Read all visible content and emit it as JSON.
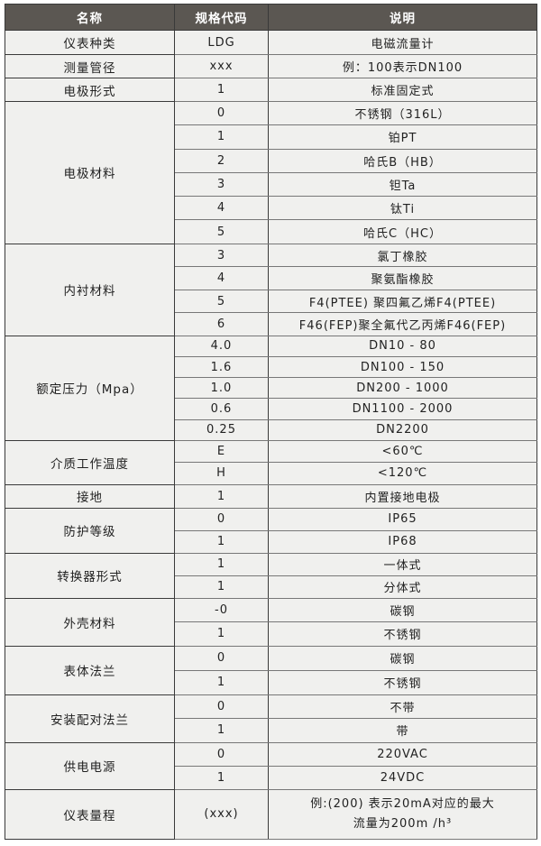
{
  "header": {
    "name": "名称",
    "code": "规格代码",
    "desc": "说明"
  },
  "groups": [
    {
      "name": "仪表种类",
      "rows": [
        {
          "code": "LDG",
          "desc": "电磁流量计"
        }
      ]
    },
    {
      "name": "测量管径",
      "rows": [
        {
          "code": "xxx",
          "desc": "例：100表示DN100"
        }
      ]
    },
    {
      "name": "电极形式",
      "rows": [
        {
          "code": "1",
          "desc": "标准固定式"
        }
      ]
    },
    {
      "name": "电极材料",
      "rows": [
        {
          "code": "0",
          "desc": "不锈钢（316L）"
        },
        {
          "code": "1",
          "desc": "铂PT"
        },
        {
          "code": "2",
          "desc": "哈氏B（HB）"
        },
        {
          "code": "3",
          "desc": "钽Ta"
        },
        {
          "code": "4",
          "desc": "钛Ti"
        },
        {
          "code": "5",
          "desc": "哈氏C（HC）"
        }
      ]
    },
    {
      "name": "内衬材料",
      "rows": [
        {
          "code": "3",
          "desc": "氯丁橡胶"
        },
        {
          "code": "4",
          "desc": "聚氨酯橡胶"
        },
        {
          "code": "5",
          "desc": "F4(PTEE) 聚四氟乙烯F4(PTEE)"
        },
        {
          "code": "6",
          "desc": "F46(FEP)聚全氟代乙丙烯F46(FEP)"
        }
      ]
    },
    {
      "name": "额定压力（Mpa）",
      "rows": [
        {
          "code": "4.0",
          "desc": "DN10 - 80"
        },
        {
          "code": "1.6",
          "desc": "DN100 - 150"
        },
        {
          "code": "1.0",
          "desc": "DN200 - 1000"
        },
        {
          "code": "0.6",
          "desc": "DN1100 - 2000"
        },
        {
          "code": "0.25",
          "desc": "DN2200"
        }
      ]
    },
    {
      "name": "介质工作温度",
      "rows": [
        {
          "code": "E",
          "desc": "<60℃"
        },
        {
          "code": "H",
          "desc": "<120℃"
        }
      ]
    },
    {
      "name": "接地",
      "rows": [
        {
          "code": "1",
          "desc": "内置接地电极"
        }
      ]
    },
    {
      "name": "防护等级",
      "rows": [
        {
          "code": "0",
          "desc": "IP65"
        },
        {
          "code": "1",
          "desc": "IP68"
        }
      ]
    },
    {
      "name": "转换器形式",
      "rows": [
        {
          "code": "1",
          "desc": "一体式"
        },
        {
          "code": "1",
          "desc": "分体式"
        }
      ]
    },
    {
      "name": "外壳材料",
      "rows": [
        {
          "code": "-0",
          "desc": "碳钢"
        },
        {
          "code": "1",
          "desc": "不锈钢"
        }
      ]
    },
    {
      "name": "表体法兰",
      "rows": [
        {
          "code": "0",
          "desc": "碳钢"
        },
        {
          "code": "1",
          "desc": "不锈钢"
        }
      ]
    },
    {
      "name": "安装配对法兰",
      "rows": [
        {
          "code": "0",
          "desc": "不带"
        },
        {
          "code": "1",
          "desc": "带"
        }
      ]
    },
    {
      "name": "供电电源",
      "rows": [
        {
          "code": "0",
          "desc": "220VAC"
        },
        {
          "code": "1",
          "desc": "24VDC"
        }
      ]
    },
    {
      "name": "仪表量程",
      "rows": [
        {
          "code": "(xxx)",
          "desc": "例:(200) 表示20mA对应的最大",
          "desc_line2": "流量为200m /h³"
        }
      ]
    }
  ]
}
